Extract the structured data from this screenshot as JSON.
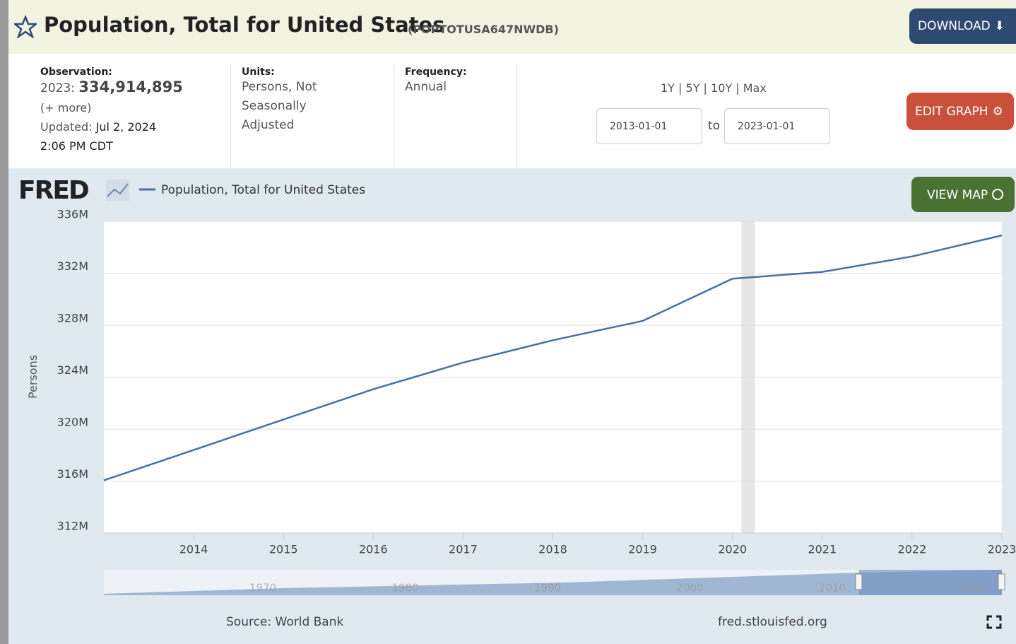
{
  "header": {
    "title": "Population, Total for United States",
    "series_id": "(POPTOTUSA647NWDB)",
    "download": "DOWNLOAD"
  },
  "info": {
    "observation_label": "Observation:",
    "observation_date": "2023:",
    "observation_value": "334,914,895",
    "more": "(+ more)",
    "updated_label": "Updated:",
    "updated": "Jul 2, 2024",
    "updated_time": "2:06 PM CDT",
    "units_label": "Units:",
    "units": "Persons, Not Seasonally Adjusted",
    "frequency_label": "Frequency:",
    "frequency": "Annual",
    "ranges": "1Y | 5Y | 10Y | Max",
    "start_date": "2013-01-01",
    "to": "to",
    "end_date": "2023-01-01",
    "edit": "EDIT GRAPH"
  },
  "chart_data": {
    "type": "line",
    "logo": "FRED",
    "view_map": "VIEW MAP",
    "y_label": "Persons",
    "x": [
      2013,
      2014,
      2015,
      2016,
      2017,
      2018,
      2019,
      2020,
      2021,
      2022,
      2023
    ],
    "series": [
      {
        "name": "Population, Total for United States",
        "color": "#4a6fa5",
        "values": [
          316.06,
          318.39,
          320.74,
          323.07,
          325.12,
          326.84,
          328.33,
          331.58,
          332.1,
          333.29,
          334.91
        ]
      }
    ],
    "xlim": [
      2013,
      2023
    ],
    "xticks": [
      2014,
      2015,
      2016,
      2017,
      2018,
      2019,
      2020,
      2021,
      2022,
      2023
    ],
    "ylim": [
      312,
      336
    ],
    "yticks": [
      {
        "value": 312,
        "label": "312M"
      },
      {
        "value": 316,
        "label": "316M"
      },
      {
        "value": 320,
        "label": "320M"
      },
      {
        "value": 324,
        "label": "324M"
      },
      {
        "value": 328,
        "label": "328M"
      },
      {
        "value": 332,
        "label": "332M"
      },
      {
        "value": 336,
        "label": "336M"
      }
    ],
    "shaded": [
      [
        2020.1,
        2020.25
      ]
    ],
    "grid": true,
    "navigator_labels": [
      "1970",
      "1980",
      "1990",
      "2000",
      "2010",
      "2020"
    ],
    "source": "Source: World Bank",
    "site": "fred.stlouisfed.org"
  }
}
